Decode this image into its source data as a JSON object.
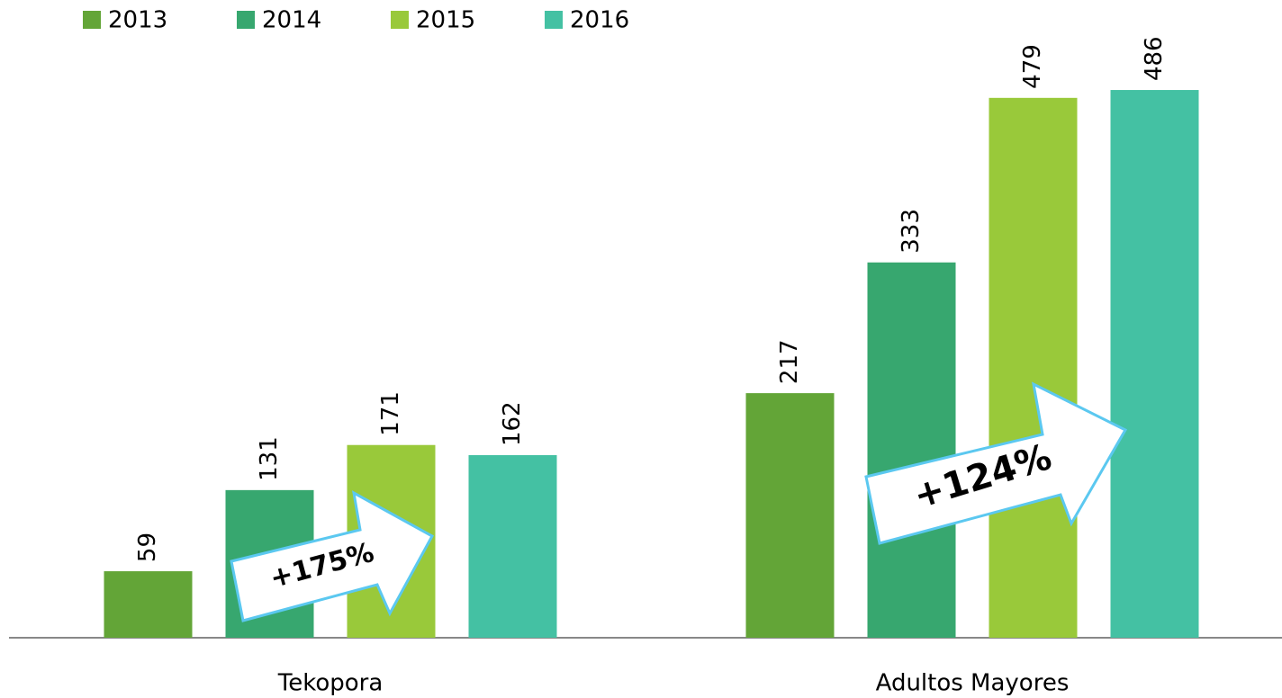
{
  "chart_data": {
    "type": "bar",
    "categories": [
      "Tekopora",
      "Adultos Mayores"
    ],
    "series": [
      {
        "name": "2013",
        "color": "#63a537",
        "values": [
          59,
          217
        ]
      },
      {
        "name": "2014",
        "color": "#37a76f",
        "values": [
          131,
          333
        ]
      },
      {
        "name": "2015",
        "color": "#99c93a",
        "values": [
          171,
          479
        ]
      },
      {
        "name": "2016",
        "color": "#44c1a3",
        "values": [
          162,
          486
        ]
      }
    ],
    "ylim": [
      0,
      500
    ],
    "annotations": [
      "+175%",
      "+124%"
    ],
    "legend": "top-left"
  }
}
